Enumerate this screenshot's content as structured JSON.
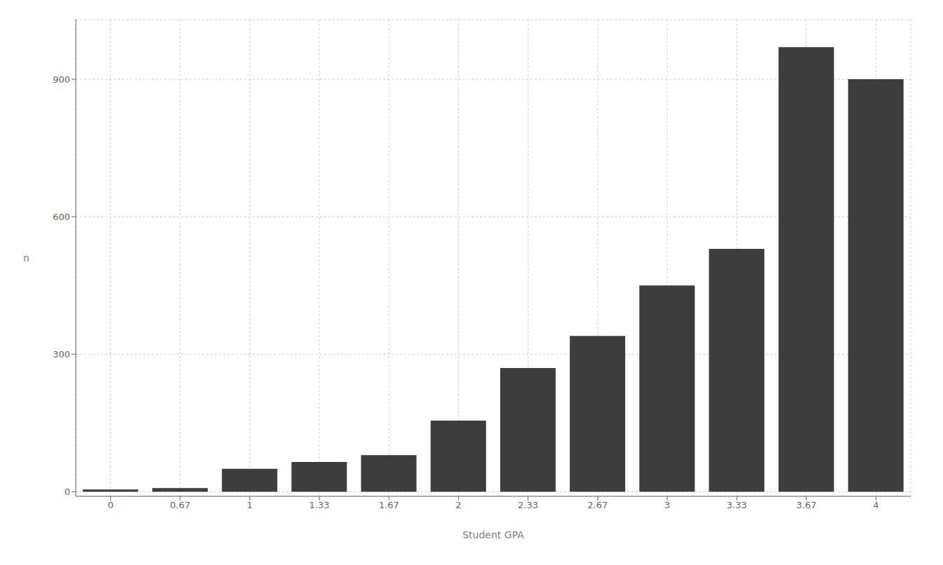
{
  "chart_data": {
    "type": "bar",
    "xlabel": "Student GPA",
    "ylabel": "n",
    "categories": [
      "0",
      "0.67",
      "1",
      "1.33",
      "1.67",
      "2",
      "2.33",
      "2.67",
      "3",
      "3.33",
      "3.67",
      "4"
    ],
    "values": [
      5,
      8,
      50,
      65,
      80,
      155,
      270,
      340,
      450,
      530,
      970,
      900
    ],
    "color": "#3d3d3d",
    "ylim": [
      -10,
      1030
    ],
    "yticks": [
      0,
      300,
      600,
      900
    ],
    "grid": true
  }
}
